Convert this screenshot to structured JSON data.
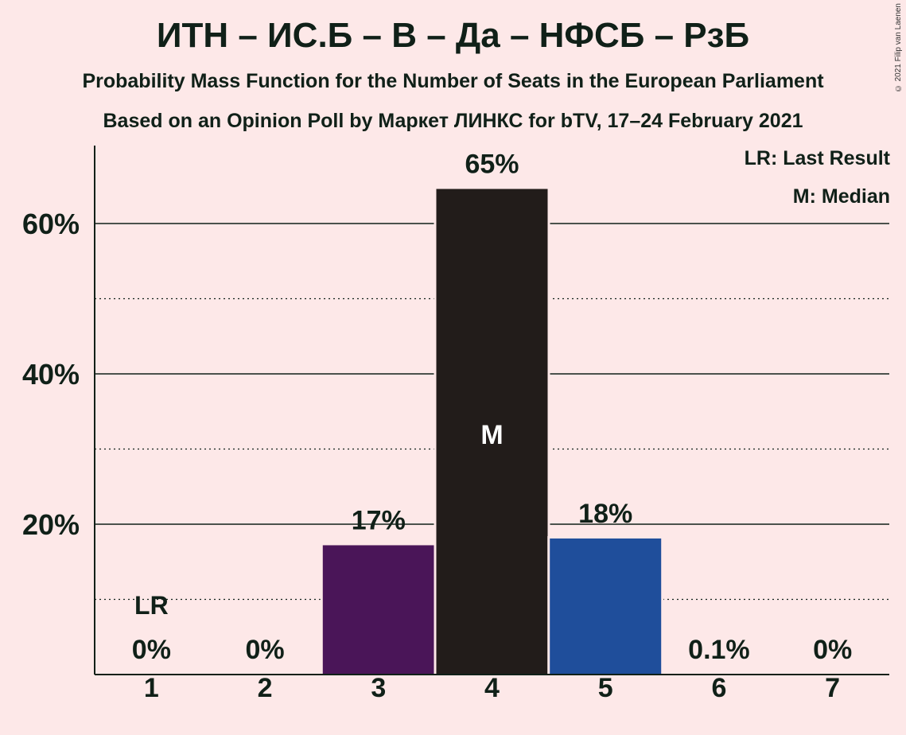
{
  "header": {
    "title": "ИТН – ИС.Б – В – Да – НФСБ – РзБ",
    "subtitle": "Probability Mass Function for the Number of Seats in the European Parliament",
    "source": "Based on an Opinion Poll by Маркет ЛИНКС for bTV, 17–24 February 2021",
    "copyright": "© 2021 Filip van Laenen"
  },
  "legend": {
    "last_result": "LR: Last Result",
    "median": "M: Median"
  },
  "chart_data": {
    "type": "bar",
    "categories": [
      "1",
      "2",
      "3",
      "4",
      "5",
      "6",
      "7"
    ],
    "values": [
      0,
      0,
      17.2,
      64.6,
      18.1,
      0.1,
      0
    ],
    "labels": [
      "0%",
      "0%",
      "17%",
      "65%",
      "18%",
      "0.1%",
      "0%"
    ],
    "colors": [
      "#4a1558",
      "#4a1558",
      "#4a1558",
      "#221c1a",
      "#1f4e9b",
      "#1f4e9b",
      "#1f4e9b"
    ],
    "ylim": [
      0,
      70
    ],
    "yticks_major": [
      20,
      40,
      60
    ],
    "ytick_labels": [
      "20%",
      "40%",
      "60%"
    ],
    "yticks_minor": [
      10,
      30,
      50
    ],
    "last_result_index": 0,
    "last_result_label": "LR",
    "median_index": 3,
    "median_label": "M"
  }
}
